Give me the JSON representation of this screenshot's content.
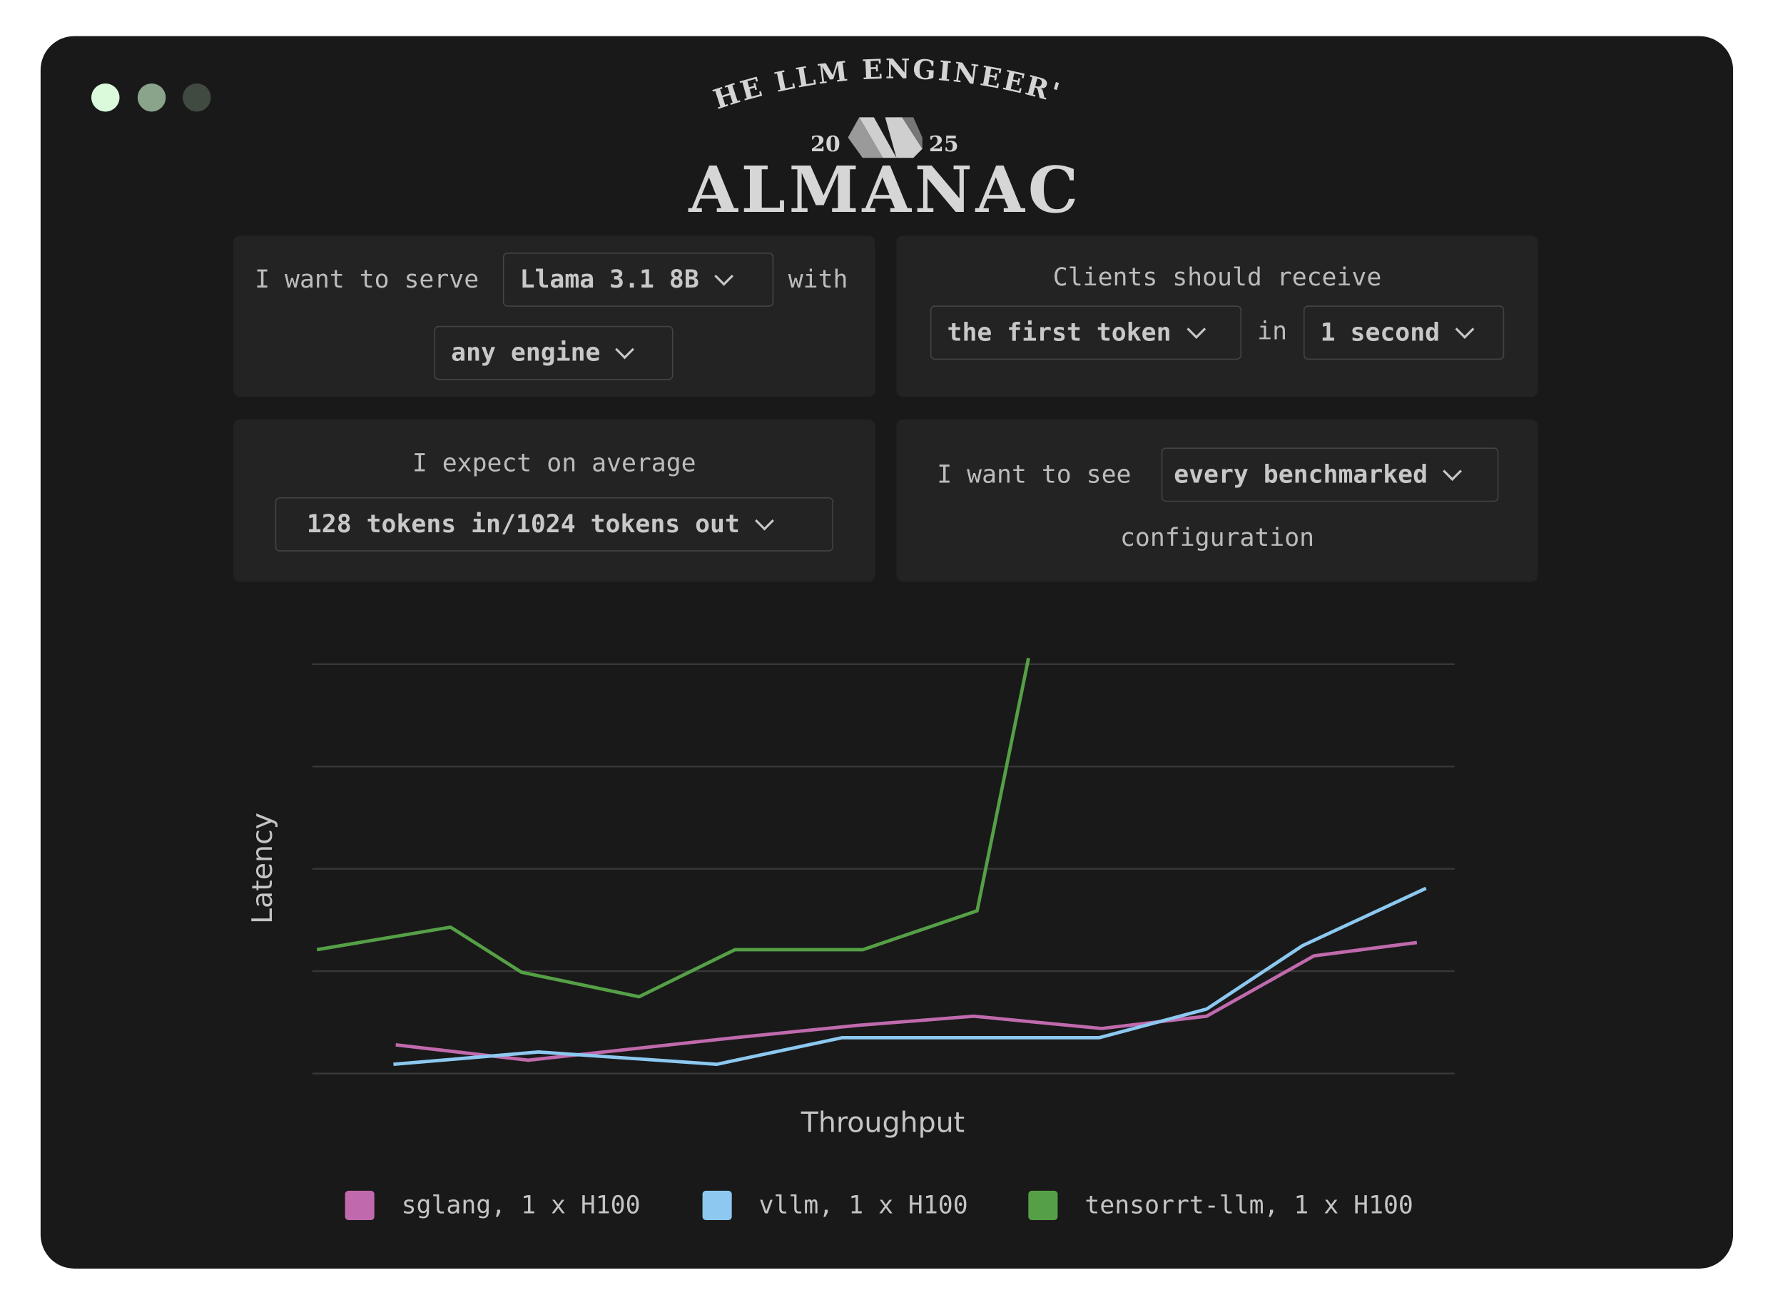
{
  "window": {
    "dots": [
      "#dbf9db",
      "#8aa48c",
      "#414a41"
    ]
  },
  "logo": {
    "arc_text": "THE LLM ENGINEER'S",
    "year_left": "20",
    "year_right": "25",
    "title": "ALMANAC"
  },
  "panels": {
    "serve": {
      "prefix": "I want to serve",
      "model": "Llama 3.1 8B",
      "suffix": "with",
      "engine": "any engine"
    },
    "clients": {
      "prefix": "Clients should receive",
      "target": "the first token",
      "middle": "in",
      "time": "1 second"
    },
    "expect": {
      "prefix": "I expect on average",
      "workload": "128 tokens in/1024 tokens out"
    },
    "see": {
      "prefix": "I want to see",
      "filter": "every benchmarked",
      "suffix": "configuration"
    }
  },
  "chart_data": {
    "type": "line",
    "xlabel": "Throughput",
    "ylabel": "Latency",
    "grid": true,
    "legend_placement": "bottom",
    "xlim": [
      0,
      1000
    ],
    "ylim": [
      0,
      4
    ],
    "series": [
      {
        "name": "sglang, 1 x H100",
        "color": "#c06aad",
        "x": [
          73,
          189,
          370,
          477,
          579,
          691,
          783,
          877,
          967
        ],
        "y": [
          0.28,
          0.13,
          0.35,
          0.47,
          0.56,
          0.44,
          0.56,
          1.15,
          1.28
        ]
      },
      {
        "name": "vllm, 1 x H100",
        "color": "#8cc8f0",
        "x": [
          71,
          198,
          354,
          464,
          689,
          783,
          867,
          975
        ],
        "y": [
          0.09,
          0.21,
          0.09,
          0.35,
          0.35,
          0.63,
          1.25,
          1.81
        ]
      },
      {
        "name": "tensorrt-llm, 1 x H100",
        "color": "#55a046",
        "x": [
          4,
          121,
          183,
          286,
          370,
          482,
          582,
          627
        ],
        "y": [
          1.21,
          1.43,
          0.99,
          0.75,
          1.21,
          1.21,
          1.59,
          4.06
        ]
      }
    ]
  }
}
